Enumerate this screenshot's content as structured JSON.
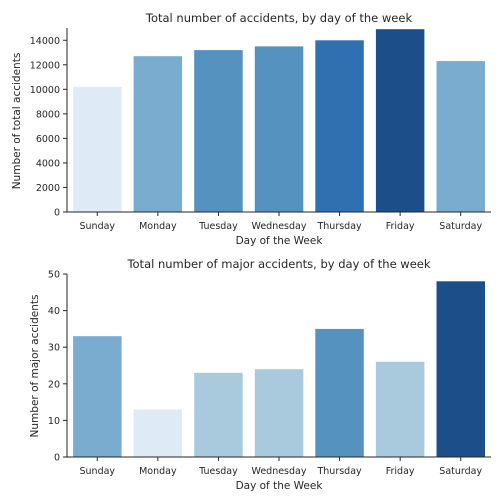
{
  "chart_data": [
    {
      "type": "bar",
      "title": "Total number of accidents, by day of the week",
      "xlabel": "Day of the Week",
      "ylabel": "Number of total accidents",
      "categories": [
        "Sunday",
        "Monday",
        "Tuesday",
        "Wednesday",
        "Thursday",
        "Friday",
        "Saturday"
      ],
      "values": [
        10200,
        12700,
        13200,
        13500,
        14000,
        14900,
        12300
      ],
      "colors": [
        "#deebf7",
        "#7aaccf",
        "#5592bf",
        "#5592bf",
        "#3070b0",
        "#1c4f8a",
        "#7aaccf"
      ],
      "ylim": [
        0,
        15000
      ],
      "yticks": [
        0,
        2000,
        4000,
        6000,
        8000,
        10000,
        12000,
        14000
      ],
      "grid": false
    },
    {
      "type": "bar",
      "title": "Total number of major accidents, by day of the week",
      "xlabel": "Day of the Week",
      "ylabel": "Number of major accidents",
      "categories": [
        "Sunday",
        "Monday",
        "Tuesday",
        "Wednesday",
        "Thursday",
        "Friday",
        "Saturday"
      ],
      "values": [
        33,
        13,
        23,
        24,
        35,
        26,
        48
      ],
      "colors": [
        "#7aaccf",
        "#deebf7",
        "#a9c9dd",
        "#a9c9dd",
        "#5592bf",
        "#a9c9dd",
        "#1c4f8a"
      ],
      "ylim": [
        0,
        50
      ],
      "yticks": [
        0,
        10,
        20,
        30,
        40,
        50
      ],
      "grid": false
    }
  ]
}
